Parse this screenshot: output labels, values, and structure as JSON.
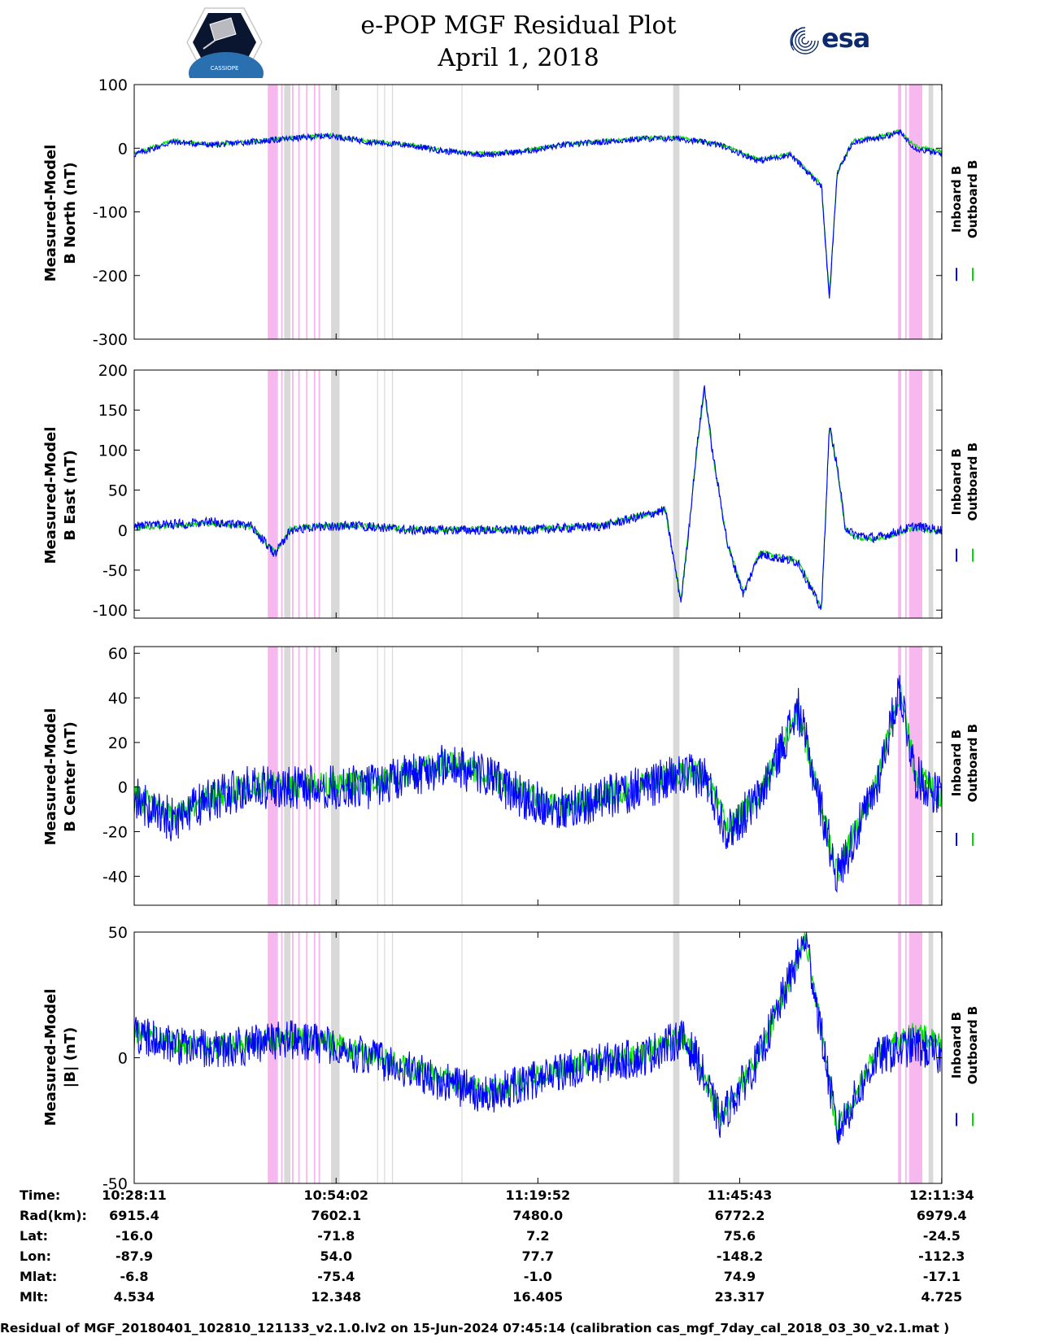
{
  "header": {
    "title": "e-POP MGF Residual Plot",
    "date": "April 1, 2018",
    "esa_logo_text": "esa",
    "mission_logo_text": "CASSIOPE"
  },
  "colors": {
    "inboard": "#0000ff",
    "outboard": "#00dd00",
    "gray_band": "#d9d9d9",
    "pink_band": "#f7b8f0"
  },
  "legend": {
    "inboard": "Inboard B",
    "outboard": "Outboard B"
  },
  "chart_data": [
    {
      "type": "line",
      "ylabel": [
        "Measured-Model",
        "B North (nT)"
      ],
      "ylim": [
        -300,
        100
      ],
      "yticks": [
        -300,
        -200,
        -100,
        0,
        100
      ],
      "x_range_minutes": [
        0,
        103.4
      ],
      "series": [
        {
          "name": "Inboard B",
          "x": [
            0,
            5,
            10,
            15,
            20,
            25,
            30,
            35,
            40,
            45,
            50,
            55,
            60,
            65,
            70,
            75,
            80,
            84,
            88,
            89,
            90,
            92,
            95,
            98,
            100,
            103.4
          ],
          "values": [
            -10,
            10,
            5,
            10,
            15,
            20,
            10,
            5,
            -5,
            -10,
            -5,
            5,
            10,
            15,
            15,
            5,
            -20,
            -10,
            -60,
            -240,
            -40,
            10,
            15,
            25,
            0,
            -10
          ]
        },
        {
          "name": "Outboard B",
          "x": [
            0,
            5,
            10,
            15,
            20,
            25,
            30,
            35,
            40,
            45,
            50,
            55,
            60,
            65,
            70,
            75,
            80,
            84,
            88,
            89,
            90,
            92,
            95,
            98,
            100,
            103.4
          ],
          "values": [
            -8,
            12,
            6,
            11,
            16,
            21,
            11,
            6,
            -4,
            -9,
            -4,
            6,
            11,
            16,
            16,
            6,
            -18,
            -8,
            -58,
            -230,
            -38,
            12,
            17,
            27,
            3,
            -5
          ]
        }
      ]
    },
    {
      "type": "line",
      "ylabel": [
        "Measured-Model",
        "B East (nT)"
      ],
      "ylim": [
        -110,
        200
      ],
      "yticks": [
        -100,
        -50,
        0,
        50,
        100,
        150,
        200
      ],
      "x_range_minutes": [
        0,
        103.4
      ],
      "series": [
        {
          "name": "Inboard B",
          "x": [
            0,
            10,
            15,
            18,
            20,
            25,
            30,
            35,
            40,
            50,
            60,
            68,
            70,
            71,
            72,
            73,
            74,
            76,
            78,
            80,
            85,
            88,
            89,
            90,
            91,
            92,
            95,
            100,
            103.4
          ],
          "values": [
            5,
            10,
            5,
            -30,
            0,
            5,
            5,
            0,
            0,
            0,
            5,
            25,
            -90,
            0,
            100,
            180,
            100,
            -20,
            -80,
            -30,
            -40,
            -100,
            130,
            80,
            5,
            -5,
            -10,
            5,
            0
          ]
        },
        {
          "name": "Outboard B",
          "x": [
            0,
            10,
            15,
            18,
            20,
            25,
            30,
            35,
            40,
            50,
            60,
            68,
            70,
            71,
            72,
            73,
            74,
            76,
            78,
            80,
            85,
            88,
            89,
            90,
            91,
            92,
            95,
            100,
            103.4
          ],
          "values": [
            3,
            8,
            4,
            -28,
            2,
            6,
            6,
            1,
            1,
            1,
            6,
            26,
            -88,
            2,
            98,
            175,
            98,
            -18,
            -78,
            -28,
            -38,
            -98,
            128,
            78,
            3,
            -8,
            -12,
            3,
            -2
          ]
        }
      ]
    },
    {
      "type": "line",
      "ylabel": [
        "Measured-Model",
        "B Center (nT)"
      ],
      "ylim": [
        -53,
        63
      ],
      "yticks": [
        -40,
        -20,
        0,
        20,
        40,
        60
      ],
      "x_range_minutes": [
        0,
        103.4
      ],
      "series": [
        {
          "name": "Inboard B",
          "x": [
            0,
            5,
            10,
            15,
            20,
            25,
            30,
            35,
            40,
            45,
            50,
            55,
            60,
            65,
            70,
            73,
            76,
            80,
            85,
            90,
            95,
            98,
            100,
            103.4
          ],
          "values": [
            -5,
            -15,
            -5,
            0,
            0,
            0,
            0,
            5,
            10,
            5,
            -5,
            -10,
            -5,
            0,
            5,
            5,
            -20,
            -5,
            35,
            -40,
            0,
            45,
            5,
            -5
          ]
        },
        {
          "name": "Outboard B",
          "x": [
            0,
            5,
            10,
            15,
            20,
            25,
            30,
            35,
            40,
            45,
            50,
            55,
            60,
            65,
            70,
            73,
            76,
            80,
            85,
            90,
            95,
            98,
            100,
            103.4
          ],
          "values": [
            -4,
            -14,
            -4,
            1,
            1,
            1,
            1,
            6,
            11,
            6,
            -4,
            -9,
            -4,
            1,
            6,
            6,
            -19,
            -4,
            34,
            -38,
            1,
            44,
            6,
            -4
          ]
        }
      ]
    },
    {
      "type": "line",
      "ylabel": [
        "Measured-Model",
        "|B| (nT)"
      ],
      "ylim": [
        -50,
        50
      ],
      "yticks": [
        -50,
        0,
        50
      ],
      "x_range_minutes": [
        0,
        103.4
      ],
      "series": [
        {
          "name": "Inboard B",
          "x": [
            0,
            5,
            10,
            15,
            20,
            25,
            30,
            35,
            40,
            45,
            50,
            55,
            60,
            65,
            70,
            72,
            75,
            80,
            86,
            90,
            95,
            100,
            103.4
          ],
          "values": [
            10,
            5,
            3,
            5,
            7,
            5,
            0,
            -5,
            -10,
            -15,
            -10,
            -5,
            -2,
            0,
            8,
            0,
            -25,
            0,
            48,
            -30,
            0,
            5,
            0
          ]
        },
        {
          "name": "Outboard B",
          "x": [
            0,
            5,
            10,
            15,
            20,
            25,
            30,
            35,
            40,
            45,
            50,
            55,
            60,
            65,
            70,
            72,
            75,
            80,
            86,
            90,
            95,
            100,
            103.4
          ],
          "values": [
            11,
            6,
            4,
            6,
            8,
            6,
            1,
            -4,
            -9,
            -14,
            -9,
            -4,
            -1,
            1,
            9,
            1,
            -24,
            1,
            47,
            -29,
            2,
            10,
            5
          ]
        }
      ]
    }
  ],
  "time_axis": {
    "ticks_minutes": [
      0,
      25.85,
      51.68,
      77.52,
      103.38
    ],
    "gray_bands_minutes": [
      [
        19.2,
        20.0
      ],
      [
        25.2,
        26.3
      ],
      [
        31.1,
        31.2
      ],
      [
        32.0,
        32.1
      ],
      [
        33.0,
        33.1
      ],
      [
        41.9,
        42.0
      ],
      [
        69.0,
        69.8
      ],
      [
        101.7,
        102.3
      ]
    ],
    "pink_bands_minutes": [
      [
        17.1,
        18.4
      ],
      [
        18.8,
        19.0
      ],
      [
        19.5,
        19.7
      ],
      [
        20.2,
        20.4
      ],
      [
        21.0,
        21.2
      ],
      [
        22.0,
        22.2
      ],
      [
        23.0,
        23.2
      ],
      [
        23.6,
        23.8
      ],
      [
        97.8,
        98.2
      ],
      [
        98.7,
        98.9
      ],
      [
        99.2,
        100.9
      ]
    ]
  },
  "orbit_table": {
    "row_labels": [
      "Time:",
      "Rad(km):",
      "Lat:",
      "Lon:",
      "Mlat:",
      "Mlt:"
    ],
    "columns": [
      [
        "10:28:11",
        "6915.4",
        "-16.0",
        "-87.9",
        "-6.8",
        "4.534"
      ],
      [
        "10:54:02",
        "7602.1",
        "-71.8",
        "54.0",
        "-75.4",
        "12.348"
      ],
      [
        "11:19:52",
        "7480.0",
        "7.2",
        "77.7",
        "-1.0",
        "16.405"
      ],
      [
        "11:45:43",
        "6772.2",
        "75.6",
        "-148.2",
        "74.9",
        "23.317"
      ],
      [
        "12:11:34",
        "6979.4",
        "-24.5",
        "-112.3",
        "-17.1",
        "4.725"
      ]
    ]
  },
  "footer": "Residual of MGF_20180401_102810_121133_v2.1.0.lv2 on 15-Jun-2024 07:45:14 (calibration cas_mgf_7day_cal_2018_03_30_v2.1.mat )"
}
